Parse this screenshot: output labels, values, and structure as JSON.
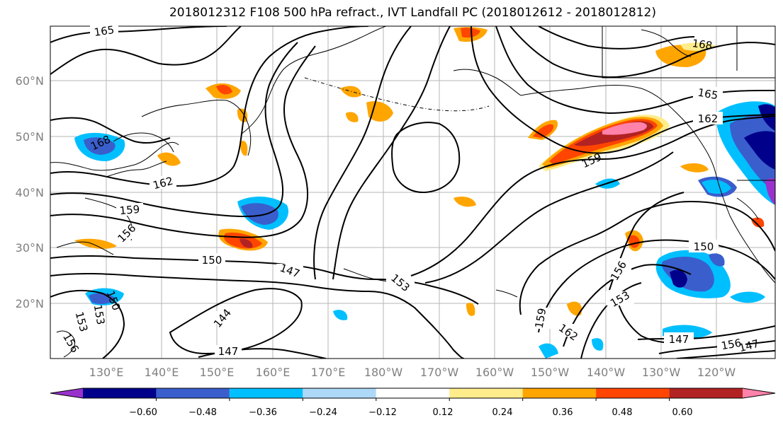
{
  "title": "2018012312 F108 500 hPa refract., IVT Landfall PC (2018012612 - 2018012812)",
  "lat_labels": [
    "60°N",
    "50°N",
    "40°N",
    "30°N",
    "20°N"
  ],
  "lon_labels": [
    "130°E",
    "140°E",
    "150°E",
    "160°E",
    "170°E",
    "180°W",
    "170°W",
    "160°W",
    "150°W",
    "140°W",
    "130°W",
    "120°W"
  ],
  "colorbar": {
    "colors": [
      "#9932cc",
      "#00008b",
      "#3a5ecc",
      "#00bfff",
      "#add8f8",
      "#ffffff",
      "#ffec8b",
      "#ffa500",
      "#ff4500",
      "#b22222",
      "#ff82ab"
    ],
    "tick_labels": [
      "−0.60",
      "−0.48",
      "−0.36",
      "−0.24",
      "−0.12",
      "0.12",
      "0.24",
      "0.36",
      "0.48",
      "0.60"
    ]
  },
  "contour_labels": [
    "165",
    "168",
    "162",
    "159",
    "156",
    "150",
    "147",
    "144",
    "153",
    "150",
    "153",
    "156",
    "165",
    "168",
    "162",
    "159",
    "153",
    "156",
    "162",
    "159",
    "150",
    "147",
    "153",
    "156",
    "147"
  ]
}
